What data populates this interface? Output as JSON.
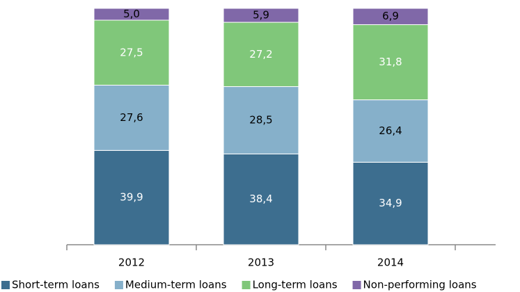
{
  "chart_data": {
    "type": "stacked_bar",
    "categories": [
      "2012",
      "2013",
      "2014"
    ],
    "series": [
      {
        "name": "Short-term loans",
        "color": "#3d6e8f",
        "label_color": "#ffffff",
        "values": [
          39.9,
          38.4,
          34.9
        ],
        "value_labels": [
          "39,9",
          "38,4",
          "34,9"
        ]
      },
      {
        "name": "Medium-term loans",
        "color": "#86b0ca",
        "label_color": "#000000",
        "values": [
          27.6,
          28.5,
          26.4
        ],
        "value_labels": [
          "27,6",
          "28,5",
          "26,4"
        ]
      },
      {
        "name": "Long-term loans",
        "color": "#80c77a",
        "label_color": "#ffffff",
        "values": [
          27.5,
          27.2,
          31.8
        ],
        "value_labels": [
          "27,5",
          "27,2",
          "31,8"
        ]
      },
      {
        "name": "Non-performing loans",
        "color": "#8068a8",
        "label_color": "#000000",
        "values": [
          5.0,
          5.9,
          6.9
        ],
        "value_labels": [
          "5,0",
          "5,9",
          "6,9"
        ]
      }
    ],
    "ylim": [
      0,
      100
    ],
    "legend": "bottom"
  }
}
